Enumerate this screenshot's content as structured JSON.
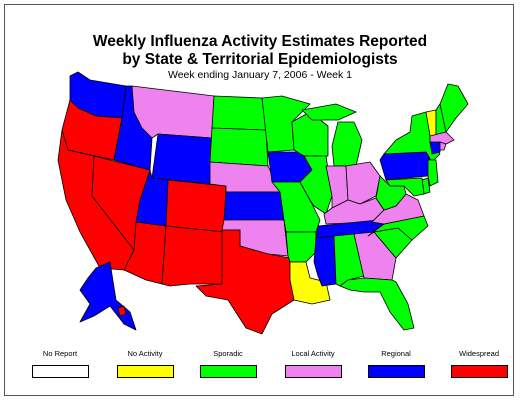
{
  "title_line1": "Weekly Influenza Activity Estimates Reported",
  "title_line2": "by State & Territorial Epidemiologists",
  "subtitle": "Week ending January 7, 2006 - Week 1",
  "colors": {
    "no_report": "#ffffff",
    "no_activity": "#ffff00",
    "sporadic": "#00ff00",
    "local": "#ee82ee",
    "regional": "#0000ff",
    "widespread": "#ff0000",
    "border": "#000000"
  },
  "legend": [
    {
      "label": "No Report",
      "color": "#ffffff"
    },
    {
      "label": "No Activity",
      "color": "#ffff00"
    },
    {
      "label": "Sporadic",
      "color": "#00ff00"
    },
    {
      "label": "Local Activity",
      "color": "#ee82ee"
    },
    {
      "label": "Regional",
      "color": "#0000ff"
    },
    {
      "label": "Widespread",
      "color": "#ff0000"
    }
  ],
  "states": {
    "WA": "regional",
    "OR": "widespread",
    "CA": "widespread",
    "NV": "widespread",
    "ID": "regional",
    "MT": "local",
    "WY": "regional",
    "UT": "regional",
    "AZ": "widespread",
    "CO": "widespread",
    "NM": "widespread",
    "TX": "widespread",
    "ND": "sporadic",
    "SD": "sporadic",
    "NE": "local",
    "KS": "regional",
    "OK": "local",
    "MN": "sporadic",
    "IA": "regional",
    "MO": "sporadic",
    "AR": "sporadic",
    "LA": "no_activity",
    "WI": "sporadic",
    "IL": "sporadic",
    "MS": "regional",
    "AL": "sporadic",
    "TN": "regional",
    "KY": "local",
    "IN": "local",
    "OH": "local",
    "MI": "sporadic",
    "GA": "local",
    "FL": "sporadic",
    "SC": "sporadic",
    "NC": "sporadic",
    "VA": "local",
    "WV": "sporadic",
    "PA": "regional",
    "NY": "sporadic",
    "VT": "no_activity",
    "NH": "sporadic",
    "ME": "sporadic",
    "MA": "local",
    "RI": "local",
    "CT": "regional",
    "NJ": "sporadic",
    "DE": "sporadic",
    "MD": "sporadic",
    "AK": "regional",
    "HI": "widespread"
  }
}
